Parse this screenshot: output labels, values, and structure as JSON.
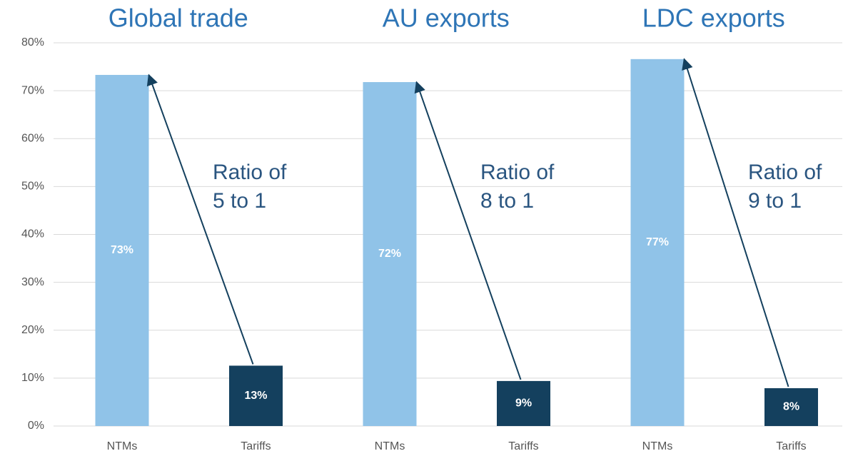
{
  "chart_data": {
    "type": "bar",
    "ylim": [
      0,
      80
    ],
    "yticks": [
      {
        "value": 0,
        "label": "0%"
      },
      {
        "value": 10,
        "label": "10%"
      },
      {
        "value": 20,
        "label": "20%"
      },
      {
        "value": 30,
        "label": "30%"
      },
      {
        "value": 40,
        "label": "40%"
      },
      {
        "value": 50,
        "label": "50%"
      },
      {
        "value": 60,
        "label": "60%"
      },
      {
        "value": 70,
        "label": "70%"
      },
      {
        "value": 80,
        "label": "80%"
      }
    ],
    "grid": true,
    "colors": [
      "#90c3e8",
      "#14405e"
    ],
    "groups": [
      {
        "title": "Global trade",
        "categories": [
          "NTMs",
          "Tariffs"
        ],
        "values": [
          73.3,
          12.6
        ],
        "value_labels": [
          "73%",
          "13%"
        ],
        "annotation": [
          "Ratio of",
          "5 to 1"
        ]
      },
      {
        "title": "AU exports",
        "categories": [
          "NTMs",
          "Tariffs"
        ],
        "values": [
          71.8,
          9.4
        ],
        "value_labels": [
          "72%",
          "9%"
        ],
        "annotation": [
          "Ratio of",
          "8 to 1"
        ]
      },
      {
        "title": "LDC exports",
        "categories": [
          "NTMs",
          "Tariffs"
        ],
        "values": [
          76.6,
          7.9
        ],
        "value_labels": [
          "77%",
          "8%"
        ],
        "annotation": [
          "Ratio of",
          "9 to 1"
        ]
      }
    ]
  }
}
